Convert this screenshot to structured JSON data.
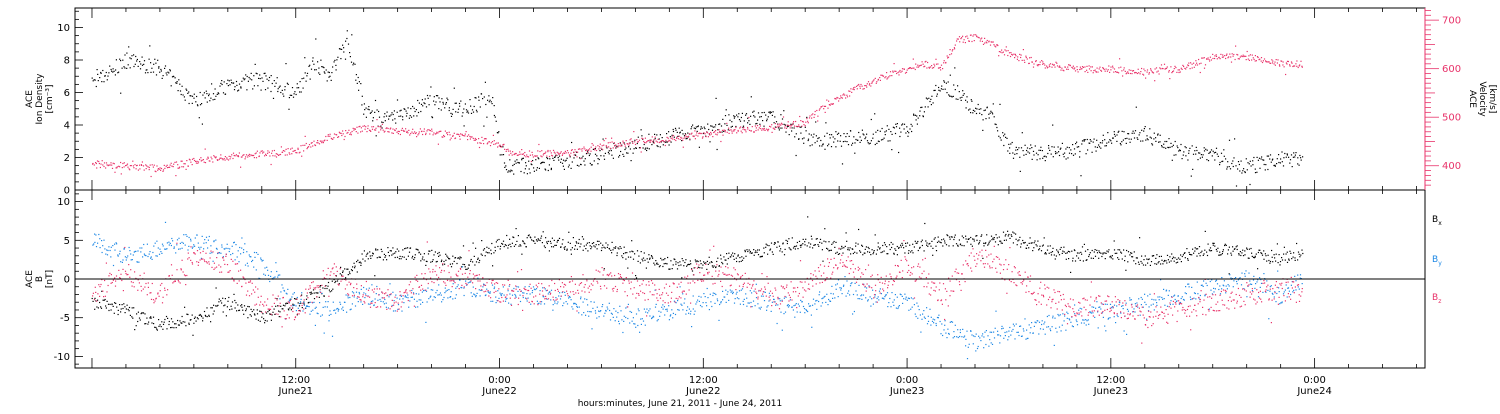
{
  "chart_data": [
    {
      "type": "scatter",
      "panel": "plasma",
      "left_ylabel": [
        "ACE",
        "Ion Density",
        "[cm⁻³]"
      ],
      "right_ylabel": [
        "ACE",
        "Velocity",
        "[km/s]"
      ],
      "ylim_left": [
        0,
        11.2
      ],
      "ylim_right": [
        350,
        725
      ],
      "yticks_left": [
        0,
        2,
        4,
        6,
        8,
        10
      ],
      "yticks_right": [
        400,
        500,
        600,
        700
      ],
      "series": [
        {
          "name": "Ion Density",
          "axis": "left",
          "color": "#000000",
          "x_hours": [
            0,
            2,
            4,
            6,
            8,
            10,
            12,
            13,
            14,
            15,
            16,
            17,
            18,
            20,
            22,
            23.5,
            24.3,
            26,
            28,
            30,
            32,
            34,
            36,
            38,
            40,
            42,
            43,
            44,
            46,
            48,
            50,
            51,
            52,
            53,
            54,
            56,
            58,
            60,
            62,
            64,
            66,
            68,
            70,
            71.3
          ],
          "y": [
            6.5,
            8.0,
            7.5,
            5.5,
            6.5,
            6.8,
            6.0,
            8.0,
            7.0,
            9.5,
            5.0,
            4.3,
            4.5,
            5.5,
            5.0,
            5.8,
            1.5,
            1.5,
            1.8,
            2.2,
            2.8,
            3.3,
            3.8,
            4.3,
            4.5,
            3.3,
            3.0,
            3.2,
            3.3,
            3.8,
            6.5,
            6.0,
            5.0,
            4.5,
            2.5,
            2.3,
            2.5,
            3.2,
            3.5,
            2.5,
            2.0,
            1.5,
            1.9,
            2.0
          ]
        },
        {
          "name": "Velocity",
          "axis": "right",
          "color": "#e8336a",
          "x_hours": [
            0,
            2,
            4,
            6,
            8,
            10,
            12,
            14,
            16,
            18,
            20,
            22,
            24,
            24.5,
            26,
            28,
            30,
            32,
            34,
            36,
            38,
            40,
            42,
            43,
            45,
            47,
            49,
            50,
            51,
            52,
            53,
            54,
            56,
            58,
            60,
            62,
            64,
            66,
            68,
            70,
            71.3
          ],
          "y": [
            405,
            400,
            395,
            410,
            420,
            425,
            432,
            460,
            478,
            472,
            470,
            460,
            445,
            430,
            425,
            428,
            440,
            452,
            456,
            465,
            475,
            480,
            490,
            520,
            560,
            590,
            610,
            605,
            660,
            665,
            650,
            630,
            610,
            600,
            600,
            595,
            600,
            625,
            625,
            612,
            610
          ]
        }
      ]
    },
    {
      "type": "scatter",
      "panel": "magnetic",
      "ylabel": [
        "ACE",
        "B",
        "[nT]"
      ],
      "ylim": [
        -11.5,
        11.5
      ],
      "yticks": [
        -10,
        -5,
        0,
        5,
        10
      ],
      "zero_line": true,
      "legend_placement": "right",
      "series": [
        {
          "name": "Bx",
          "color": "#000000",
          "x_hours": [
            0,
            2,
            4,
            6,
            8,
            10,
            12,
            14,
            16,
            18,
            20,
            22,
            24.3,
            26,
            28,
            30,
            32,
            34,
            36,
            38,
            40,
            42,
            44,
            46,
            48,
            50,
            52,
            54,
            56,
            58,
            60,
            62,
            64,
            66,
            68,
            70,
            71.3
          ],
          "y": [
            -3,
            -4,
            -6,
            -5,
            -3,
            -5,
            -3,
            -1,
            3,
            3.5,
            3,
            2,
            5,
            5,
            4.5,
            4.5,
            3,
            2,
            2,
            3,
            4,
            5,
            4,
            4,
            4,
            5,
            5,
            5.5,
            4,
            3,
            3.5,
            2.5,
            3,
            4,
            3.5,
            2.5,
            3.5
          ]
        },
        {
          "name": "By",
          "color": "#1e88e5",
          "x_hours": [
            0,
            2,
            4,
            6,
            8,
            10,
            12,
            14,
            16,
            18,
            20,
            22,
            24.3,
            26,
            28,
            30,
            32,
            34,
            36,
            38,
            40,
            42,
            44,
            46,
            48,
            50,
            52,
            54,
            56,
            58,
            60,
            62,
            64,
            66,
            68,
            70,
            71.3
          ],
          "y": [
            5,
            3,
            4,
            5,
            4,
            2,
            -3,
            -4,
            -2,
            -3,
            -2,
            -1,
            -2,
            -2,
            -3,
            -4,
            -5,
            -4,
            -3,
            -2,
            -3,
            -4,
            -1,
            -2,
            -3,
            -6,
            -8,
            -7,
            -6,
            -5,
            -4,
            -3,
            -2,
            -1,
            0,
            -2,
            0
          ]
        },
        {
          "name": "Bz",
          "color": "#e8336a",
          "x_hours": [
            0,
            2,
            4,
            6,
            8,
            10,
            12,
            14,
            16,
            18,
            20,
            22,
            24.3,
            26,
            28,
            30,
            32,
            34,
            36,
            38,
            40,
            42,
            44,
            46,
            48,
            50,
            52,
            54,
            56,
            58,
            60,
            62,
            64,
            66,
            68,
            70,
            71.3
          ],
          "y": [
            -2,
            1,
            -2,
            3,
            2,
            -3,
            -4,
            1,
            -2,
            -3,
            1,
            0,
            -2,
            -2,
            -1,
            0,
            -1,
            -2,
            1,
            0,
            -2,
            -1,
            3,
            -1,
            2,
            -2,
            3,
            1,
            -2,
            -4,
            -3,
            -5,
            -4,
            -3,
            -2,
            -1,
            -2
          ]
        }
      ]
    }
  ],
  "legend": {
    "bx_label": "B",
    "bx_sub": "x",
    "by_label": "B",
    "by_sub": "y",
    "bz_label": "B",
    "bz_sub": "z"
  },
  "xaxis": {
    "xlim_hours": [
      -1,
      78.5
    ],
    "label": "hours:minutes, June 21, 2011 - June 24, 2011",
    "ticks": [
      {
        "hours": 12,
        "time": "12:00",
        "date": "June21"
      },
      {
        "hours": 24,
        "time": "0:00",
        "date": "June22"
      },
      {
        "hours": 36,
        "time": "12:00",
        "date": "June22"
      },
      {
        "hours": 48,
        "time": "0:00",
        "date": "June23"
      },
      {
        "hours": 60,
        "time": "12:00",
        "date": "June23"
      },
      {
        "hours": 72,
        "time": "0:00",
        "date": "June24"
      }
    ]
  },
  "colors": {
    "density": "#000000",
    "velocity": "#e8336a",
    "bx": "#000000",
    "by": "#1e88e5",
    "bz": "#e8336a"
  }
}
